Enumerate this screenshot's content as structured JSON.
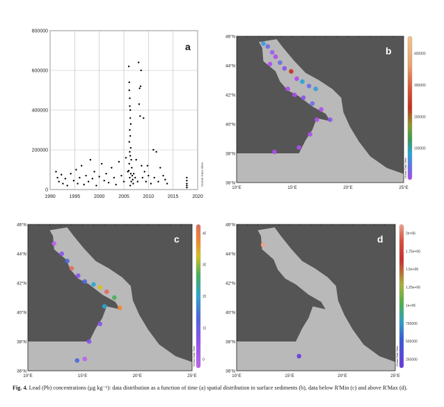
{
  "panel_a": {
    "letter": "a",
    "watermark": "Ocean Data View"
  },
  "map_panels": [
    {
      "id": "b",
      "letter": "b",
      "lat_labels": [
        "46°N",
        "44°N",
        "42°N",
        "40°N",
        "38°N",
        "36°N"
      ],
      "lon_labels": [
        "10°E",
        "15°E",
        "20°E",
        "25°E"
      ],
      "colorbar_ticks": [
        "400000",
        "300000",
        "200000",
        "100000"
      ],
      "watermark": "Ocean Data View"
    },
    {
      "id": "c",
      "letter": "c",
      "lat_labels": [
        "46°N",
        "44°N",
        "42°N",
        "40°N",
        "38°N",
        "36°N"
      ],
      "lon_labels": [
        "10°E",
        "15°E",
        "20°E",
        "25°E"
      ],
      "colorbar_ticks": [
        "4000",
        "3000",
        "2000",
        "1000",
        "0"
      ],
      "watermark": "Ocean Data View"
    },
    {
      "id": "d",
      "letter": "d",
      "lat_labels": [
        "46°N",
        "44°N",
        "42°N",
        "40°N",
        "38°N",
        "36°N"
      ],
      "lon_labels": [
        "10°E",
        "15°E",
        "20°E",
        "25°E"
      ],
      "colorbar_ticks": [
        "2e+06",
        "1.75e+06",
        "1.5e+06",
        "1.25e+06",
        "1e+06",
        "750000",
        "500000",
        "250000"
      ],
      "watermark": "Ocean Data View"
    }
  ],
  "caption": {
    "label": "Fig. 4.",
    "text": "Lead (Pb) concentrations (μg kg⁻¹): data distribution as a function of time (a) spatial distribution in surface sediments (b), data below R'Min (c) and above R'Max (d)."
  },
  "chart_data": [
    {
      "type": "scatter",
      "panel": "a",
      "xlabel": "",
      "ylabel": "",
      "xlim": [
        1990,
        2020
      ],
      "ylim": [
        0,
        800000
      ],
      "x_ticks": [
        1990,
        1995,
        2000,
        2005,
        2010,
        2015,
        2020
      ],
      "y_ticks": [
        0,
        200000,
        400000,
        600000,
        800000
      ],
      "grid": true,
      "series": [
        {
          "marker_color": "#000000",
          "points": [
            [
              1991.2,
              90000
            ],
            [
              1991.5,
              60000
            ],
            [
              1991.8,
              40000
            ],
            [
              1992.3,
              75000
            ],
            [
              1992.6,
              30000
            ],
            [
              1993.1,
              55000
            ],
            [
              1993.5,
              20000
            ],
            [
              1994.2,
              80000
            ],
            [
              1994.8,
              45000
            ],
            [
              1995.3,
              100000
            ],
            [
              1995.6,
              30000
            ],
            [
              1996.0,
              60000
            ],
            [
              1996.4,
              120000
            ],
            [
              1996.9,
              25000
            ],
            [
              1997.3,
              70000
            ],
            [
              1997.8,
              40000
            ],
            [
              1998.2,
              150000
            ],
            [
              1998.6,
              55000
            ],
            [
              1999.0,
              90000
            ],
            [
              1999.4,
              20000
            ],
            [
              2000.0,
              65000
            ],
            [
              2000.5,
              130000
            ],
            [
              2001.0,
              45000
            ],
            [
              2001.4,
              80000
            ],
            [
              2001.9,
              35000
            ],
            [
              2002.5,
              110000
            ],
            [
              2003.0,
              60000
            ],
            [
              2003.4,
              25000
            ],
            [
              2004.0,
              140000
            ],
            [
              2004.5,
              70000
            ],
            [
              2005.0,
              40000
            ],
            [
              2005.4,
              160000
            ],
            [
              2005.8,
              90000
            ],
            [
              2006.0,
              620000
            ],
            [
              2006.1,
              540000
            ],
            [
              2006.1,
              500000
            ],
            [
              2006.2,
              460000
            ],
            [
              2006.2,
              420000
            ],
            [
              2006.3,
              400000
            ],
            [
              2006.3,
              360000
            ],
            [
              2006.4,
              330000
            ],
            [
              2006.2,
              300000
            ],
            [
              2006.3,
              270000
            ],
            [
              2006.1,
              240000
            ],
            [
              2006.4,
              210000
            ],
            [
              2006.2,
              190000
            ],
            [
              2006.3,
              170000
            ],
            [
              2006.5,
              150000
            ],
            [
              2006.1,
              130000
            ],
            [
              2006.6,
              110000
            ],
            [
              2006.0,
              95000
            ],
            [
              2006.4,
              80000
            ],
            [
              2006.7,
              70000
            ],
            [
              2006.2,
              60000
            ],
            [
              2006.8,
              50000
            ],
            [
              2006.5,
              40000
            ],
            [
              2006.9,
              30000
            ],
            [
              2006.3,
              20000
            ],
            [
              2007.0,
              80000
            ],
            [
              2007.3,
              60000
            ],
            [
              2007.5,
              150000
            ],
            [
              2007.8,
              40000
            ],
            [
              2008.0,
              640000
            ],
            [
              2008.2,
              510000
            ],
            [
              2008.4,
              520000
            ],
            [
              2008.5,
              600000
            ],
            [
              2008.1,
              430000
            ],
            [
              2008.3,
              370000
            ],
            [
              2008.6,
              120000
            ],
            [
              2008.8,
              60000
            ],
            [
              2009.0,
              360000
            ],
            [
              2009.2,
              90000
            ],
            [
              2009.5,
              40000
            ],
            [
              2009.8,
              120000
            ],
            [
              2010.0,
              70000
            ],
            [
              2010.5,
              30000
            ],
            [
              2011.0,
              200000
            ],
            [
              2011.2,
              60000
            ],
            [
              2011.6,
              190000
            ],
            [
              2012.0,
              40000
            ],
            [
              2012.4,
              110000
            ],
            [
              2013.0,
              70000
            ],
            [
              2013.4,
              50000
            ],
            [
              2013.8,
              30000
            ],
            [
              2017.8,
              60000
            ],
            [
              2017.8,
              45000
            ],
            [
              2017.8,
              30000
            ],
            [
              2017.8,
              20000
            ],
            [
              2017.8,
              10000
            ]
          ]
        }
      ]
    }
  ]
}
